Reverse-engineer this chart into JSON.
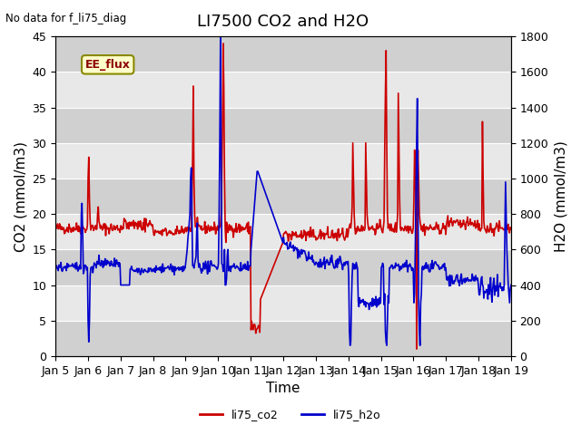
{
  "title": "LI7500 CO2 and H2O",
  "top_left_text": "No data for f_li75_diag",
  "box_label": "EE_flux",
  "xlabel": "Time",
  "ylabel_left": "CO2 (mmol/m3)",
  "ylabel_right": "H2O (mmol/m3)",
  "ylim_left": [
    0,
    45
  ],
  "ylim_right": [
    0,
    1800
  ],
  "yticks_left": [
    0,
    5,
    10,
    15,
    20,
    25,
    30,
    35,
    40,
    45
  ],
  "yticks_right": [
    0,
    200,
    400,
    600,
    800,
    1000,
    1200,
    1400,
    1600,
    1800
  ],
  "xtick_labels": [
    "Jan 5",
    "Jan 6",
    "Jan 7",
    "Jan 8",
    "Jan 9",
    "Jan 10",
    "Jan 11",
    "Jan 12",
    "Jan 13",
    "Jan 14",
    "Jan 15",
    "Jan 16",
    "Jan 17",
    "Jan 18",
    "Jan 19"
  ],
  "legend_entries": [
    "li75_co2",
    "li75_h2o"
  ],
  "legend_colors": [
    "#cc0000",
    "#0000cc"
  ],
  "co2_color": "#cc0000",
  "h2o_color": "#0000cc",
  "background_color": "#ffffff",
  "plot_bg_color": "#e8e8e8",
  "band_color": "#d0d0d0",
  "grid_color": "#ffffff",
  "box_facecolor": "#ffffcc",
  "box_edgecolor": "#888800",
  "title_fontsize": 13,
  "label_fontsize": 11,
  "tick_fontsize": 9,
  "linewidth": 1.2
}
